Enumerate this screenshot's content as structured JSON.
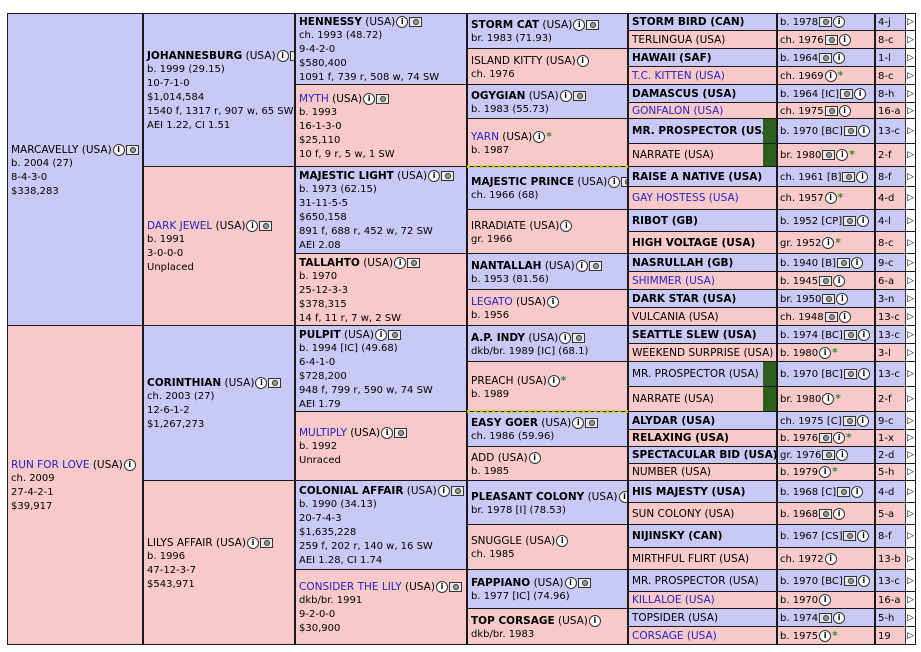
{
  "gen1": [
    {
      "name": "MARCAVELLY",
      "country": "(USA)",
      "lines": [
        "b. 2004 (27)",
        "8-4-3-0",
        "$338,283"
      ]
    },
    {
      "name": "RUN FOR LOVE",
      "country": "(USA)",
      "lines": [
        "ch. 2009",
        "27-4-2-1",
        "$39,917"
      ]
    }
  ],
  "gen2": [
    {
      "name": "JOHANNESBURG",
      "country": "(USA)",
      "lines": [
        "b. 1999 (29.15)",
        "10-7-1-0",
        "$1,014,584",
        "1540 f, 1317 r, 907 w, 65 SW",
        "AEI 1.22, CI 1.51"
      ]
    },
    {
      "name": "DARK JEWEL",
      "country": "(USA)",
      "lines": [
        "b. 1991",
        "3-0-0-0",
        "Unplaced"
      ]
    },
    {
      "name": "CORINTHIAN",
      "country": "(USA)",
      "lines": [
        "ch. 2003 (27)",
        "12-6-1-2",
        "$1,267,273"
      ]
    },
    {
      "name": "LILYS AFFAIR",
      "country": "(USA)",
      "lines": [
        "b. 1996",
        "47-12-3-7",
        "$543,971"
      ]
    }
  ],
  "gen3": [
    {
      "name": "HENNESSY",
      "country": "(USA)",
      "lines": [
        "ch. 1993 (48.72)",
        "9-4-2-0",
        "$580,400",
        "1091 f, 739 r, 508 w, 74 SW"
      ]
    },
    {
      "name": "MYTH",
      "country": "(USA)",
      "lines": [
        "b. 1993",
        "16-1-3-0",
        "$25,110",
        "10 f, 9 r, 5 w, 1 SW"
      ]
    },
    {
      "name": "MAJESTIC LIGHT",
      "country": "(USA)",
      "lines": [
        "b. 1973 (62.15)",
        "31-11-5-5",
        "$650,158",
        "891 f, 688 r, 452 w, 72 SW",
        "AEI 2.08"
      ]
    },
    {
      "name": "TALLAHTO",
      "country": "(USA)",
      "lines": [
        "b. 1970",
        "25-12-3-3",
        "$378,315",
        "14 f, 11 r, 7 w, 2 SW"
      ]
    },
    {
      "name": "PULPIT",
      "country": "(USA)",
      "lines": [
        "b. 1994 [IC] (49.68)",
        "6-4-1-0",
        "$728,200",
        "948 f, 799 r, 590 w, 74 SW",
        "AEI 1.79"
      ]
    },
    {
      "name": "MULTIPLY",
      "country": "(USA)",
      "lines": [
        "b. 1992",
        "Unraced"
      ]
    },
    {
      "name": "COLONIAL AFFAIR",
      "country": "(USA)",
      "lines": [
        "b. 1990 (34.13)",
        "20-7-4-3",
        "$1,635,228",
        "259 f, 202 r, 140 w, 16 SW",
        "AEI 1.28, CI 1.74"
      ]
    },
    {
      "name": "CONSIDER THE LILY",
      "country": "(USA)",
      "lines": [
        "dkb/br. 1991",
        "9-2-0-0",
        "$30,900"
      ]
    }
  ],
  "gen4": [
    {
      "name": "STORM CAT",
      "country": "(USA)",
      "lines": [
        "br. 1983 (71.93)"
      ]
    },
    {
      "name": "ISLAND KITTY",
      "country": "(USA)",
      "lines": [
        "ch. 1976"
      ]
    },
    {
      "name": "OGYGIAN",
      "country": "(USA)",
      "lines": [
        "b. 1983 (55.73)"
      ]
    },
    {
      "name": "YARN",
      "country": "(USA)",
      "lines": [
        "b. 1987"
      ]
    },
    {
      "name": "MAJESTIC PRINCE",
      "country": "(USA)",
      "lines": [
        "ch. 1966 (68)"
      ]
    },
    {
      "name": "IRRADIATE",
      "country": "(USA)",
      "lines": [
        "gr. 1966"
      ]
    },
    {
      "name": "NANTALLAH",
      "country": "(USA)",
      "lines": [
        "b. 1953 (81.56)"
      ]
    },
    {
      "name": "LEGATO",
      "country": "(USA)",
      "lines": [
        "b. 1956"
      ]
    },
    {
      "name": "A.P. INDY",
      "country": "(USA)",
      "lines": [
        "dkb/br. 1989 [IC] (68.1)"
      ]
    },
    {
      "name": "PREACH",
      "country": "(USA)",
      "lines": [
        "b. 1989"
      ]
    },
    {
      "name": "EASY GOER",
      "country": "(USA)",
      "lines": [
        "ch. 1986 (59.96)"
      ]
    },
    {
      "name": "ADD",
      "country": "(USA)",
      "lines": [
        "b. 1985"
      ]
    },
    {
      "name": "PLEASANT COLONY",
      "country": "(USA)",
      "lines": [
        "br. 1978 [I] (78.53)"
      ]
    },
    {
      "name": "SNUGGLE",
      "country": "(USA)",
      "lines": [
        "ch. 1985"
      ]
    },
    {
      "name": "FAPPIANO",
      "country": "(USA)",
      "lines": [
        "b. 1977 [IC] (74.96)"
      ]
    },
    {
      "name": "TOP CORSAGE",
      "country": "(USA)",
      "lines": [
        "dkb/br. 1983"
      ]
    }
  ],
  "gen5": [
    {
      "name": "STORM BIRD (CAN)",
      "info": "b. 1978",
      "extra": "4-j"
    },
    {
      "name": "TERLINGUA (USA)",
      "info": "ch. 1976",
      "extra": "8-c"
    },
    {
      "name": "HAWAII (SAF)",
      "info": "b. 1964",
      "extra": "1-l"
    },
    {
      "name": "T.C. KITTEN (USA)",
      "info": "ch. 1969",
      "extra": "8-c"
    },
    {
      "name": "DAMASCUS (USA)",
      "info": "b. 1964 [IC]",
      "extra": "8-h"
    },
    {
      "name": "GONFALON (USA)",
      "info": "ch. 1975",
      "extra": "16-a"
    },
    {
      "name": "MR. PROSPECTOR (USA)",
      "info": "b. 1970 [BC]",
      "extra": "13-c"
    },
    {
      "name": "NARRATE (USA)",
      "info": "br. 1980",
      "extra": "2-f"
    },
    {
      "name": "RAISE A NATIVE (USA)",
      "info": "ch. 1961 [B]",
      "extra": "8-f"
    },
    {
      "name": "GAY HOSTESS (USA)",
      "info": "ch. 1957",
      "extra": "4-d"
    },
    {
      "name": "RIBOT (GB)",
      "info": "b. 1952 [CP]",
      "extra": "4-l"
    },
    {
      "name": "HIGH VOLTAGE (USA)",
      "info": "gr. 1952",
      "extra": "8-c"
    },
    {
      "name": "NASRULLAH (GB)",
      "info": "b. 1940 [B]",
      "extra": "9-c"
    },
    {
      "name": "SHIMMER (USA)",
      "info": "b. 1945",
      "extra": "6-a"
    },
    {
      "name": "DARK STAR (USA)",
      "info": "br. 1950",
      "extra": "3-n"
    },
    {
      "name": "VULCANIA (USA)",
      "info": "ch. 1948",
      "extra": "13-c"
    },
    {
      "name": "SEATTLE SLEW (USA)",
      "info": "b. 1974 [BC]",
      "extra": "13-c"
    },
    {
      "name": "WEEKEND SURPRISE (USA)",
      "info": "b. 1980",
      "extra": "3-l"
    },
    {
      "name": "MR. PROSPECTOR (USA)",
      "info": "b. 1970 [BC]",
      "extra": "13-c"
    },
    {
      "name": "NARRATE (USA)",
      "info": "br. 1980",
      "extra": "2-f"
    },
    {
      "name": "ALYDAR (USA)",
      "info": "ch. 1975 [C]",
      "extra": "9-c"
    },
    {
      "name": "RELAXING (USA)",
      "info": "b. 1976",
      "extra": "1-x"
    },
    {
      "name": "SPECTACULAR BID (USA)",
      "info": "gr. 1976",
      "extra": "2-d"
    },
    {
      "name": "NUMBER (USA)",
      "info": "b. 1979",
      "extra": "5-h"
    },
    {
      "name": "HIS MAJESTY (USA)",
      "info": "b. 1968 [C]",
      "extra": "4-d"
    },
    {
      "name": "SUN COLONY (USA)",
      "info": "b. 1968",
      "extra": "5-a"
    },
    {
      "name": "NIJINSKY (CAN)",
      "info": "b. 1967 [CS]",
      "extra": "8-f"
    },
    {
      "name": "MIRTHFUL FLIRT (USA)",
      "info": "ch. 1972",
      "extra": "13-b"
    },
    {
      "name": "MR. PROSPECTOR (USA)",
      "info": "b. 1970 [BC]",
      "extra": "13-c"
    },
    {
      "name": "KILLALOE (USA)",
      "info": "b. 1970",
      "extra": "16-a"
    },
    {
      "name": "TOPSIDER (USA)",
      "info": "b. 1974",
      "extra": "5-h"
    },
    {
      "name": "CORSAGE (USA)",
      "info": "b. 1975",
      "extra": "19"
    }
  ]
}
